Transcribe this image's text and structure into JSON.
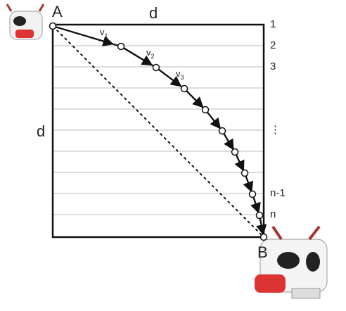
{
  "points": {
    "start": "A",
    "end": "B"
  },
  "side_labels": {
    "top": "d",
    "left": "d"
  },
  "velocities": [
    {
      "symbol": "v",
      "subscript": "1"
    },
    {
      "symbol": "v",
      "subscript": "2"
    },
    {
      "symbol": "v",
      "subscript": "3"
    }
  ],
  "row_labels": [
    "1",
    "2",
    "3",
    "⋮",
    "n-1",
    "n"
  ]
}
